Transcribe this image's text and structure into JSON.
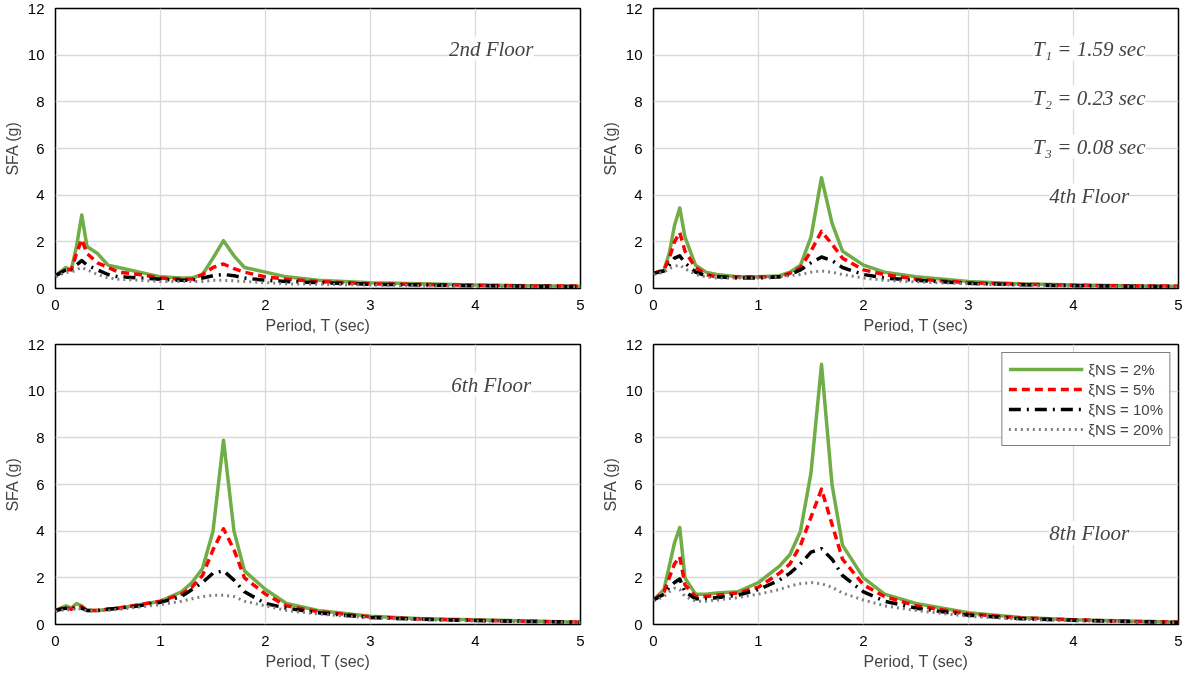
{
  "chart_data": [
    {
      "type": "line",
      "xlabel": "Period, T (sec)",
      "ylabel": "SFA (g)",
      "annotations": [
        "2nd Floor"
      ],
      "xlim": [
        0,
        5
      ],
      "xticks": [
        0,
        1,
        2,
        3,
        4,
        5
      ],
      "ylim": [
        0,
        12
      ],
      "yticks": [
        0,
        2,
        4,
        6,
        8,
        10,
        12
      ],
      "grid": true,
      "legend": false,
      "x": [
        0,
        0.1,
        0.15,
        0.2,
        0.25,
        0.3,
        0.4,
        0.5,
        0.6,
        0.8,
        1.0,
        1.2,
        1.3,
        1.4,
        1.5,
        1.6,
        1.7,
        1.8,
        2.0,
        2.2,
        2.5,
        3.0,
        3.5,
        4.0,
        4.5,
        5.0
      ],
      "series": [
        {
          "color": "#70ad47",
          "line_style": "solid",
          "values": [
            0.55,
            0.9,
            0.8,
            1.8,
            3.15,
            1.8,
            1.5,
            1.0,
            0.9,
            0.7,
            0.5,
            0.45,
            0.45,
            0.6,
            1.3,
            2.05,
            1.4,
            0.9,
            0.7,
            0.5,
            0.35,
            0.25,
            0.2,
            0.15,
            0.12,
            0.1
          ]
        },
        {
          "color": "#ff0000",
          "line_style": "dashed",
          "values": [
            0.55,
            0.8,
            0.8,
            1.5,
            2.1,
            1.5,
            1.1,
            0.9,
            0.7,
            0.6,
            0.45,
            0.4,
            0.4,
            0.6,
            0.9,
            1.05,
            0.85,
            0.7,
            0.5,
            0.4,
            0.3,
            0.2,
            0.17,
            0.14,
            0.11,
            0.1
          ]
        },
        {
          "color": "#000000",
          "line_style": "dashdot",
          "values": [
            0.55,
            0.8,
            0.75,
            1.0,
            1.2,
            1.0,
            0.8,
            0.6,
            0.5,
            0.45,
            0.4,
            0.35,
            0.35,
            0.45,
            0.55,
            0.6,
            0.55,
            0.45,
            0.35,
            0.3,
            0.25,
            0.18,
            0.15,
            0.12,
            0.1,
            0.08
          ]
        },
        {
          "color": "#808080",
          "line_style": "dotted",
          "values": [
            0.5,
            0.7,
            0.7,
            0.8,
            0.9,
            0.8,
            0.6,
            0.45,
            0.4,
            0.35,
            0.3,
            0.3,
            0.3,
            0.3,
            0.35,
            0.35,
            0.33,
            0.3,
            0.25,
            0.2,
            0.18,
            0.15,
            0.12,
            0.1,
            0.08,
            0.07
          ]
        }
      ]
    },
    {
      "type": "line",
      "xlabel": "Period, T (sec)",
      "ylabel": "SFA (g)",
      "annotations": [
        "T₁ = 1.59 sec",
        "T₂ = 0.23 sec",
        "T₃ = 0.08 sec",
        "4th Floor"
      ],
      "xlim": [
        0,
        5
      ],
      "xticks": [
        0,
        1,
        2,
        3,
        4,
        5
      ],
      "ylim": [
        0,
        12
      ],
      "yticks": [
        0,
        2,
        4,
        6,
        8,
        10,
        12
      ],
      "grid": true,
      "legend": false,
      "x": [
        0,
        0.1,
        0.15,
        0.2,
        0.25,
        0.3,
        0.4,
        0.5,
        0.6,
        0.8,
        1.0,
        1.2,
        1.3,
        1.4,
        1.5,
        1.6,
        1.7,
        1.8,
        2.0,
        2.2,
        2.5,
        3.0,
        3.5,
        4.0,
        4.5,
        5.0
      ],
      "series": [
        {
          "color": "#70ad47",
          "line_style": "solid",
          "values": [
            0.65,
            0.8,
            1.5,
            2.7,
            3.45,
            2.2,
            1.0,
            0.7,
            0.6,
            0.5,
            0.5,
            0.55,
            0.7,
            1.0,
            2.2,
            4.75,
            2.8,
            1.6,
            1.0,
            0.7,
            0.5,
            0.3,
            0.2,
            0.15,
            0.12,
            0.1
          ]
        },
        {
          "color": "#ff0000",
          "line_style": "dashed",
          "values": [
            0.65,
            0.8,
            1.3,
            2.0,
            2.4,
            1.6,
            0.9,
            0.6,
            0.5,
            0.5,
            0.5,
            0.5,
            0.65,
            0.9,
            1.6,
            2.45,
            1.9,
            1.3,
            0.8,
            0.6,
            0.4,
            0.25,
            0.18,
            0.14,
            0.11,
            0.1
          ]
        },
        {
          "color": "#000000",
          "line_style": "dashdot",
          "values": [
            0.65,
            0.75,
            1.0,
            1.3,
            1.4,
            1.1,
            0.7,
            0.55,
            0.5,
            0.45,
            0.45,
            0.5,
            0.6,
            0.8,
            1.1,
            1.35,
            1.2,
            0.9,
            0.6,
            0.45,
            0.35,
            0.22,
            0.16,
            0.12,
            0.1,
            0.08
          ]
        },
        {
          "color": "#808080",
          "line_style": "dotted",
          "values": [
            0.6,
            0.7,
            0.85,
            0.95,
            1.0,
            0.85,
            0.6,
            0.5,
            0.45,
            0.45,
            0.45,
            0.5,
            0.55,
            0.6,
            0.7,
            0.75,
            0.7,
            0.6,
            0.45,
            0.35,
            0.28,
            0.2,
            0.14,
            0.11,
            0.09,
            0.07
          ]
        }
      ]
    },
    {
      "type": "line",
      "xlabel": "Period, T (sec)",
      "ylabel": "SFA (g)",
      "annotations": [
        "6th Floor"
      ],
      "xlim": [
        0,
        5
      ],
      "xticks": [
        0,
        1,
        2,
        3,
        4,
        5
      ],
      "ylim": [
        0,
        12
      ],
      "yticks": [
        0,
        2,
        4,
        6,
        8,
        10,
        12
      ],
      "grid": true,
      "legend": false,
      "x": [
        0,
        0.1,
        0.15,
        0.2,
        0.25,
        0.3,
        0.4,
        0.5,
        0.6,
        0.8,
        1.0,
        1.2,
        1.3,
        1.4,
        1.5,
        1.6,
        1.7,
        1.8,
        2.0,
        2.2,
        2.5,
        3.0,
        3.5,
        4.0,
        4.5,
        5.0
      ],
      "series": [
        {
          "color": "#70ad47",
          "line_style": "solid",
          "values": [
            0.6,
            0.8,
            0.7,
            0.9,
            0.8,
            0.6,
            0.6,
            0.65,
            0.7,
            0.85,
            1.0,
            1.4,
            1.8,
            2.4,
            4.0,
            7.9,
            4.0,
            2.3,
            1.5,
            0.9,
            0.6,
            0.35,
            0.25,
            0.2,
            0.15,
            0.1
          ]
        },
        {
          "color": "#ff0000",
          "line_style": "dashed",
          "values": [
            0.6,
            0.75,
            0.65,
            0.8,
            0.75,
            0.6,
            0.6,
            0.65,
            0.7,
            0.85,
            1.0,
            1.3,
            1.6,
            2.1,
            3.2,
            4.1,
            3.2,
            2.0,
            1.3,
            0.8,
            0.55,
            0.33,
            0.23,
            0.18,
            0.14,
            0.1
          ]
        },
        {
          "color": "#000000",
          "line_style": "dashdot",
          "values": [
            0.6,
            0.7,
            0.65,
            0.75,
            0.7,
            0.6,
            0.6,
            0.65,
            0.7,
            0.8,
            0.95,
            1.2,
            1.5,
            1.8,
            2.2,
            2.3,
            1.9,
            1.4,
            0.9,
            0.7,
            0.5,
            0.3,
            0.22,
            0.17,
            0.13,
            0.1
          ]
        },
        {
          "color": "#808080",
          "line_style": "dotted",
          "values": [
            0.55,
            0.65,
            0.6,
            0.7,
            0.65,
            0.6,
            0.6,
            0.6,
            0.65,
            0.75,
            0.85,
            1.0,
            1.1,
            1.2,
            1.25,
            1.25,
            1.2,
            1.0,
            0.8,
            0.6,
            0.45,
            0.28,
            0.2,
            0.15,
            0.12,
            0.09
          ]
        }
      ]
    },
    {
      "type": "line",
      "xlabel": "Period, T (sec)",
      "ylabel": "SFA (g)",
      "annotations": [
        "8th Floor"
      ],
      "xlim": [
        0,
        5
      ],
      "xticks": [
        0,
        1,
        2,
        3,
        4,
        5
      ],
      "ylim": [
        0,
        12
      ],
      "yticks": [
        0,
        2,
        4,
        6,
        8,
        10,
        12
      ],
      "grid": true,
      "legend": "top right",
      "x": [
        0,
        0.1,
        0.15,
        0.2,
        0.25,
        0.3,
        0.4,
        0.5,
        0.6,
        0.8,
        1.0,
        1.2,
        1.3,
        1.4,
        1.5,
        1.6,
        1.7,
        1.8,
        2.0,
        2.2,
        2.5,
        3.0,
        3.5,
        4.0,
        4.5,
        5.0
      ],
      "series": [
        {
          "name": "ξNS = 2%",
          "color": "#70ad47",
          "line_style": "solid",
          "values": [
            1.05,
            1.5,
            2.5,
            3.5,
            4.15,
            2.0,
            1.3,
            1.3,
            1.35,
            1.4,
            1.8,
            2.5,
            3.0,
            4.0,
            6.5,
            11.15,
            6.0,
            3.4,
            2.0,
            1.3,
            0.9,
            0.5,
            0.3,
            0.2,
            0.15,
            0.1
          ]
        },
        {
          "name": "ξNS = 5%",
          "color": "#ff0000",
          "line_style": "dashed",
          "values": [
            1.05,
            1.4,
            2.0,
            2.6,
            2.9,
            1.7,
            1.2,
            1.2,
            1.25,
            1.35,
            1.6,
            2.2,
            2.6,
            3.4,
            4.6,
            5.8,
            4.3,
            2.8,
            1.7,
            1.2,
            0.8,
            0.45,
            0.28,
            0.2,
            0.14,
            0.1
          ]
        },
        {
          "name": "ξNS = 10%",
          "color": "#000000",
          "line_style": "dashdot",
          "values": [
            1.05,
            1.3,
            1.6,
            1.8,
            1.95,
            1.4,
            1.1,
            1.1,
            1.15,
            1.25,
            1.5,
            1.9,
            2.2,
            2.6,
            3.1,
            3.25,
            2.8,
            2.1,
            1.4,
            1.0,
            0.7,
            0.4,
            0.25,
            0.18,
            0.13,
            0.09
          ]
        },
        {
          "name": "ξNS = 20%",
          "color": "#808080",
          "line_style": "dotted",
          "values": [
            1.0,
            1.2,
            1.4,
            1.55,
            1.5,
            1.2,
            1.0,
            1.0,
            1.05,
            1.15,
            1.3,
            1.5,
            1.65,
            1.75,
            1.8,
            1.75,
            1.6,
            1.35,
            1.05,
            0.8,
            0.6,
            0.35,
            0.22,
            0.16,
            0.12,
            0.08
          ]
        }
      ]
    }
  ]
}
